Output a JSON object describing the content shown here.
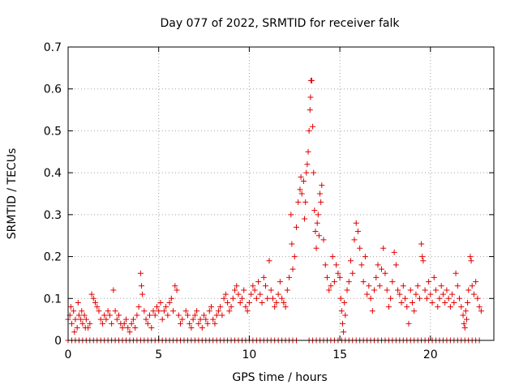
{
  "chart_data": {
    "type": "scatter",
    "title": "Day 077 of 2022, SRMTID for receiver falk",
    "xlabel": "GPS time / hours",
    "ylabel": "SRMTID / TECUs",
    "xlim": [
      0,
      23.5
    ],
    "ylim": [
      0,
      0.7
    ],
    "xticks": [
      0,
      5,
      10,
      15,
      20
    ],
    "yticks": [
      0,
      0.1,
      0.2,
      0.3,
      0.4,
      0.5,
      0.6,
      0.7
    ],
    "xtick_labels": [
      "0",
      "5",
      "10",
      "15",
      "20"
    ],
    "ytick_labels": [
      "0",
      "0.1",
      "0.2",
      "0.3",
      "0.4",
      "0.5",
      "0.6",
      "0.7"
    ],
    "grid": true,
    "marker": "plus",
    "color": "#e00000",
    "series": [
      {
        "name": "SRMTID",
        "points": [
          [
            0.0,
            0.05
          ],
          [
            0.1,
            0.06
          ],
          [
            0.2,
            0.04
          ],
          [
            0.3,
            0.07
          ],
          [
            0.4,
            0.05
          ],
          [
            0.5,
            0.03
          ],
          [
            0.6,
            0.06
          ],
          [
            0.7,
            0.05
          ],
          [
            0.8,
            0.04
          ],
          [
            0.9,
            0.06
          ],
          [
            1.0,
            0.05
          ],
          [
            1.1,
            0.03
          ],
          [
            1.2,
            0.04
          ],
          [
            0.15,
            0.08
          ],
          [
            0.35,
            0.02
          ],
          [
            0.55,
            0.09
          ],
          [
            0.75,
            0.07
          ],
          [
            0.95,
            0.03
          ],
          [
            1.3,
            0.11
          ],
          [
            1.4,
            0.1
          ],
          [
            1.5,
            0.09
          ],
          [
            1.6,
            0.08
          ],
          [
            1.7,
            0.07
          ],
          [
            1.8,
            0.05
          ],
          [
            1.9,
            0.04
          ],
          [
            2.0,
            0.06
          ],
          [
            2.1,
            0.05
          ],
          [
            2.2,
            0.07
          ],
          [
            2.3,
            0.06
          ],
          [
            2.4,
            0.04
          ],
          [
            2.5,
            0.12
          ],
          [
            2.6,
            0.07
          ],
          [
            2.7,
            0.05
          ],
          [
            2.8,
            0.06
          ],
          [
            2.9,
            0.04
          ],
          [
            3.0,
            0.03
          ],
          [
            3.1,
            0.04
          ],
          [
            3.2,
            0.05
          ],
          [
            3.3,
            0.03
          ],
          [
            3.4,
            0.02
          ],
          [
            3.5,
            0.04
          ],
          [
            3.6,
            0.05
          ],
          [
            3.7,
            0.03
          ],
          [
            3.8,
            0.06
          ],
          [
            3.9,
            0.08
          ],
          [
            4.0,
            0.16
          ],
          [
            4.05,
            0.13
          ],
          [
            4.1,
            0.11
          ],
          [
            4.2,
            0.07
          ],
          [
            4.3,
            0.05
          ],
          [
            4.4,
            0.04
          ],
          [
            4.5,
            0.06
          ],
          [
            4.6,
            0.03
          ],
          [
            4.7,
            0.07
          ],
          [
            4.8,
            0.06
          ],
          [
            4.9,
            0.08
          ],
          [
            5.0,
            0.07
          ],
          [
            5.1,
            0.09
          ],
          [
            5.2,
            0.05
          ],
          [
            5.3,
            0.07
          ],
          [
            5.4,
            0.08
          ],
          [
            5.5,
            0.06
          ],
          [
            5.6,
            0.09
          ],
          [
            5.7,
            0.1
          ],
          [
            5.8,
            0.07
          ],
          [
            5.9,
            0.13
          ],
          [
            6.0,
            0.12
          ],
          [
            6.1,
            0.06
          ],
          [
            6.2,
            0.04
          ],
          [
            6.3,
            0.05
          ],
          [
            6.5,
            0.07
          ],
          [
            6.6,
            0.06
          ],
          [
            6.7,
            0.04
          ],
          [
            6.8,
            0.03
          ],
          [
            6.9,
            0.05
          ],
          [
            7.0,
            0.06
          ],
          [
            7.1,
            0.07
          ],
          [
            7.2,
            0.04
          ],
          [
            7.3,
            0.05
          ],
          [
            7.4,
            0.03
          ],
          [
            7.5,
            0.06
          ],
          [
            7.6,
            0.05
          ],
          [
            7.7,
            0.04
          ],
          [
            7.8,
            0.07
          ],
          [
            7.9,
            0.08
          ],
          [
            8.0,
            0.05
          ],
          [
            8.1,
            0.04
          ],
          [
            8.2,
            0.06
          ],
          [
            8.3,
            0.07
          ],
          [
            8.4,
            0.08
          ],
          [
            8.5,
            0.06
          ],
          [
            8.6,
            0.1
          ],
          [
            8.7,
            0.11
          ],
          [
            8.8,
            0.09
          ],
          [
            8.9,
            0.07
          ],
          [
            9.0,
            0.08
          ],
          [
            9.1,
            0.1
          ],
          [
            9.2,
            0.12
          ],
          [
            9.3,
            0.13
          ],
          [
            9.4,
            0.11
          ],
          [
            9.5,
            0.09
          ],
          [
            9.6,
            0.1
          ],
          [
            9.7,
            0.12
          ],
          [
            9.8,
            0.08
          ],
          [
            9.9,
            0.07
          ],
          [
            10.0,
            0.09
          ],
          [
            10.1,
            0.11
          ],
          [
            10.2,
            0.13
          ],
          [
            10.3,
            0.12
          ],
          [
            10.4,
            0.1
          ],
          [
            10.5,
            0.14
          ],
          [
            10.6,
            0.11
          ],
          [
            10.7,
            0.09
          ],
          [
            10.8,
            0.15
          ],
          [
            10.9,
            0.13
          ],
          [
            11.0,
            0.1
          ],
          [
            11.1,
            0.19
          ],
          [
            11.2,
            0.12
          ],
          [
            11.3,
            0.1
          ],
          [
            11.4,
            0.08
          ],
          [
            11.5,
            0.09
          ],
          [
            11.6,
            0.11
          ],
          [
            11.7,
            0.14
          ],
          [
            11.8,
            0.1
          ],
          [
            11.9,
            0.09
          ],
          [
            12.0,
            0.08
          ],
          [
            12.1,
            0.12
          ],
          [
            12.2,
            0.15
          ],
          [
            12.3,
            0.3
          ],
          [
            12.35,
            0.23
          ],
          [
            12.4,
            0.17
          ],
          [
            12.5,
            0.2
          ],
          [
            12.6,
            0.27
          ],
          [
            12.7,
            0.33
          ],
          [
            12.8,
            0.36
          ],
          [
            12.85,
            0.39
          ],
          [
            12.9,
            0.35
          ],
          [
            13.0,
            0.38
          ],
          [
            13.05,
            0.29
          ],
          [
            13.1,
            0.33
          ],
          [
            13.15,
            0.4
          ],
          [
            13.2,
            0.42
          ],
          [
            13.25,
            0.45
          ],
          [
            13.3,
            0.5
          ],
          [
            13.35,
            0.55
          ],
          [
            13.38,
            0.58
          ],
          [
            13.4,
            0.62
          ],
          [
            13.45,
            0.62
          ],
          [
            13.5,
            0.51
          ],
          [
            13.55,
            0.4
          ],
          [
            13.6,
            0.31
          ],
          [
            13.65,
            0.26
          ],
          [
            13.7,
            0.22
          ],
          [
            13.75,
            0.28
          ],
          [
            13.8,
            0.3
          ],
          [
            13.85,
            0.25
          ],
          [
            13.9,
            0.35
          ],
          [
            13.95,
            0.33
          ],
          [
            14.0,
            0.37
          ],
          [
            14.1,
            0.24
          ],
          [
            14.2,
            0.18
          ],
          [
            14.3,
            0.15
          ],
          [
            14.4,
            0.12
          ],
          [
            14.5,
            0.13
          ],
          [
            14.6,
            0.2
          ],
          [
            14.7,
            0.14
          ],
          [
            14.8,
            0.18
          ],
          [
            14.9,
            0.16
          ],
          [
            15.0,
            0.15
          ],
          [
            15.05,
            0.1
          ],
          [
            15.1,
            0.07
          ],
          [
            15.15,
            0.04
          ],
          [
            15.2,
            0.02
          ],
          [
            15.25,
            0.09
          ],
          [
            15.3,
            0.06
          ],
          [
            15.4,
            0.12
          ],
          [
            15.5,
            0.14
          ],
          [
            15.6,
            0.19
          ],
          [
            15.7,
            0.16
          ],
          [
            15.8,
            0.24
          ],
          [
            15.9,
            0.28
          ],
          [
            16.0,
            0.26
          ],
          [
            16.1,
            0.22
          ],
          [
            16.2,
            0.18
          ],
          [
            16.3,
            0.14
          ],
          [
            16.4,
            0.2
          ],
          [
            16.5,
            0.11
          ],
          [
            16.6,
            0.13
          ],
          [
            16.7,
            0.1
          ],
          [
            16.8,
            0.07
          ],
          [
            16.9,
            0.12
          ],
          [
            17.0,
            0.15
          ],
          [
            17.1,
            0.18
          ],
          [
            17.2,
            0.13
          ],
          [
            17.3,
            0.17
          ],
          [
            17.4,
            0.22
          ],
          [
            17.5,
            0.16
          ],
          [
            17.6,
            0.12
          ],
          [
            17.7,
            0.08
          ],
          [
            17.8,
            0.1
          ],
          [
            17.9,
            0.14
          ],
          [
            18.0,
            0.21
          ],
          [
            18.1,
            0.18
          ],
          [
            18.2,
            0.12
          ],
          [
            18.3,
            0.11
          ],
          [
            18.4,
            0.09
          ],
          [
            18.5,
            0.13
          ],
          [
            18.6,
            0.1
          ],
          [
            18.7,
            0.08
          ],
          [
            18.8,
            0.04
          ],
          [
            18.9,
            0.12
          ],
          [
            19.0,
            0.09
          ],
          [
            19.1,
            0.07
          ],
          [
            19.2,
            0.11
          ],
          [
            19.3,
            0.13
          ],
          [
            19.4,
            0.1
          ],
          [
            19.5,
            0.23
          ],
          [
            19.55,
            0.2
          ],
          [
            19.6,
            0.19
          ],
          [
            19.7,
            0.12
          ],
          [
            19.8,
            0.1
          ],
          [
            19.9,
            0.14
          ],
          [
            20.0,
            0.11
          ],
          [
            20.1,
            0.09
          ],
          [
            20.2,
            0.15
          ],
          [
            20.3,
            0.12
          ],
          [
            20.4,
            0.08
          ],
          [
            20.5,
            0.1
          ],
          [
            20.6,
            0.13
          ],
          [
            20.7,
            0.11
          ],
          [
            20.8,
            0.09
          ],
          [
            20.9,
            0.12
          ],
          [
            21.0,
            0.1
          ],
          [
            21.1,
            0.08
          ],
          [
            21.2,
            0.11
          ],
          [
            21.3,
            0.09
          ],
          [
            21.4,
            0.16
          ],
          [
            21.5,
            0.13
          ],
          [
            21.6,
            0.1
          ],
          [
            21.7,
            0.08
          ],
          [
            21.8,
            0.06
          ],
          [
            21.85,
            0.04
          ],
          [
            21.9,
            0.03
          ],
          [
            21.95,
            0.07
          ],
          [
            22.0,
            0.05
          ],
          [
            22.05,
            0.09
          ],
          [
            22.1,
            0.12
          ],
          [
            22.2,
            0.2
          ],
          [
            22.25,
            0.19
          ],
          [
            22.3,
            0.13
          ],
          [
            22.4,
            0.11
          ],
          [
            22.5,
            0.14
          ],
          [
            22.6,
            0.1
          ],
          [
            22.7,
            0.08
          ],
          [
            22.8,
            0.07
          ]
        ]
      }
    ],
    "zero_band": {
      "segments": [
        [
          0.0,
          12.6
        ],
        [
          13.3,
          22.8
        ]
      ],
      "step": 0.2,
      "y": 0
    }
  }
}
